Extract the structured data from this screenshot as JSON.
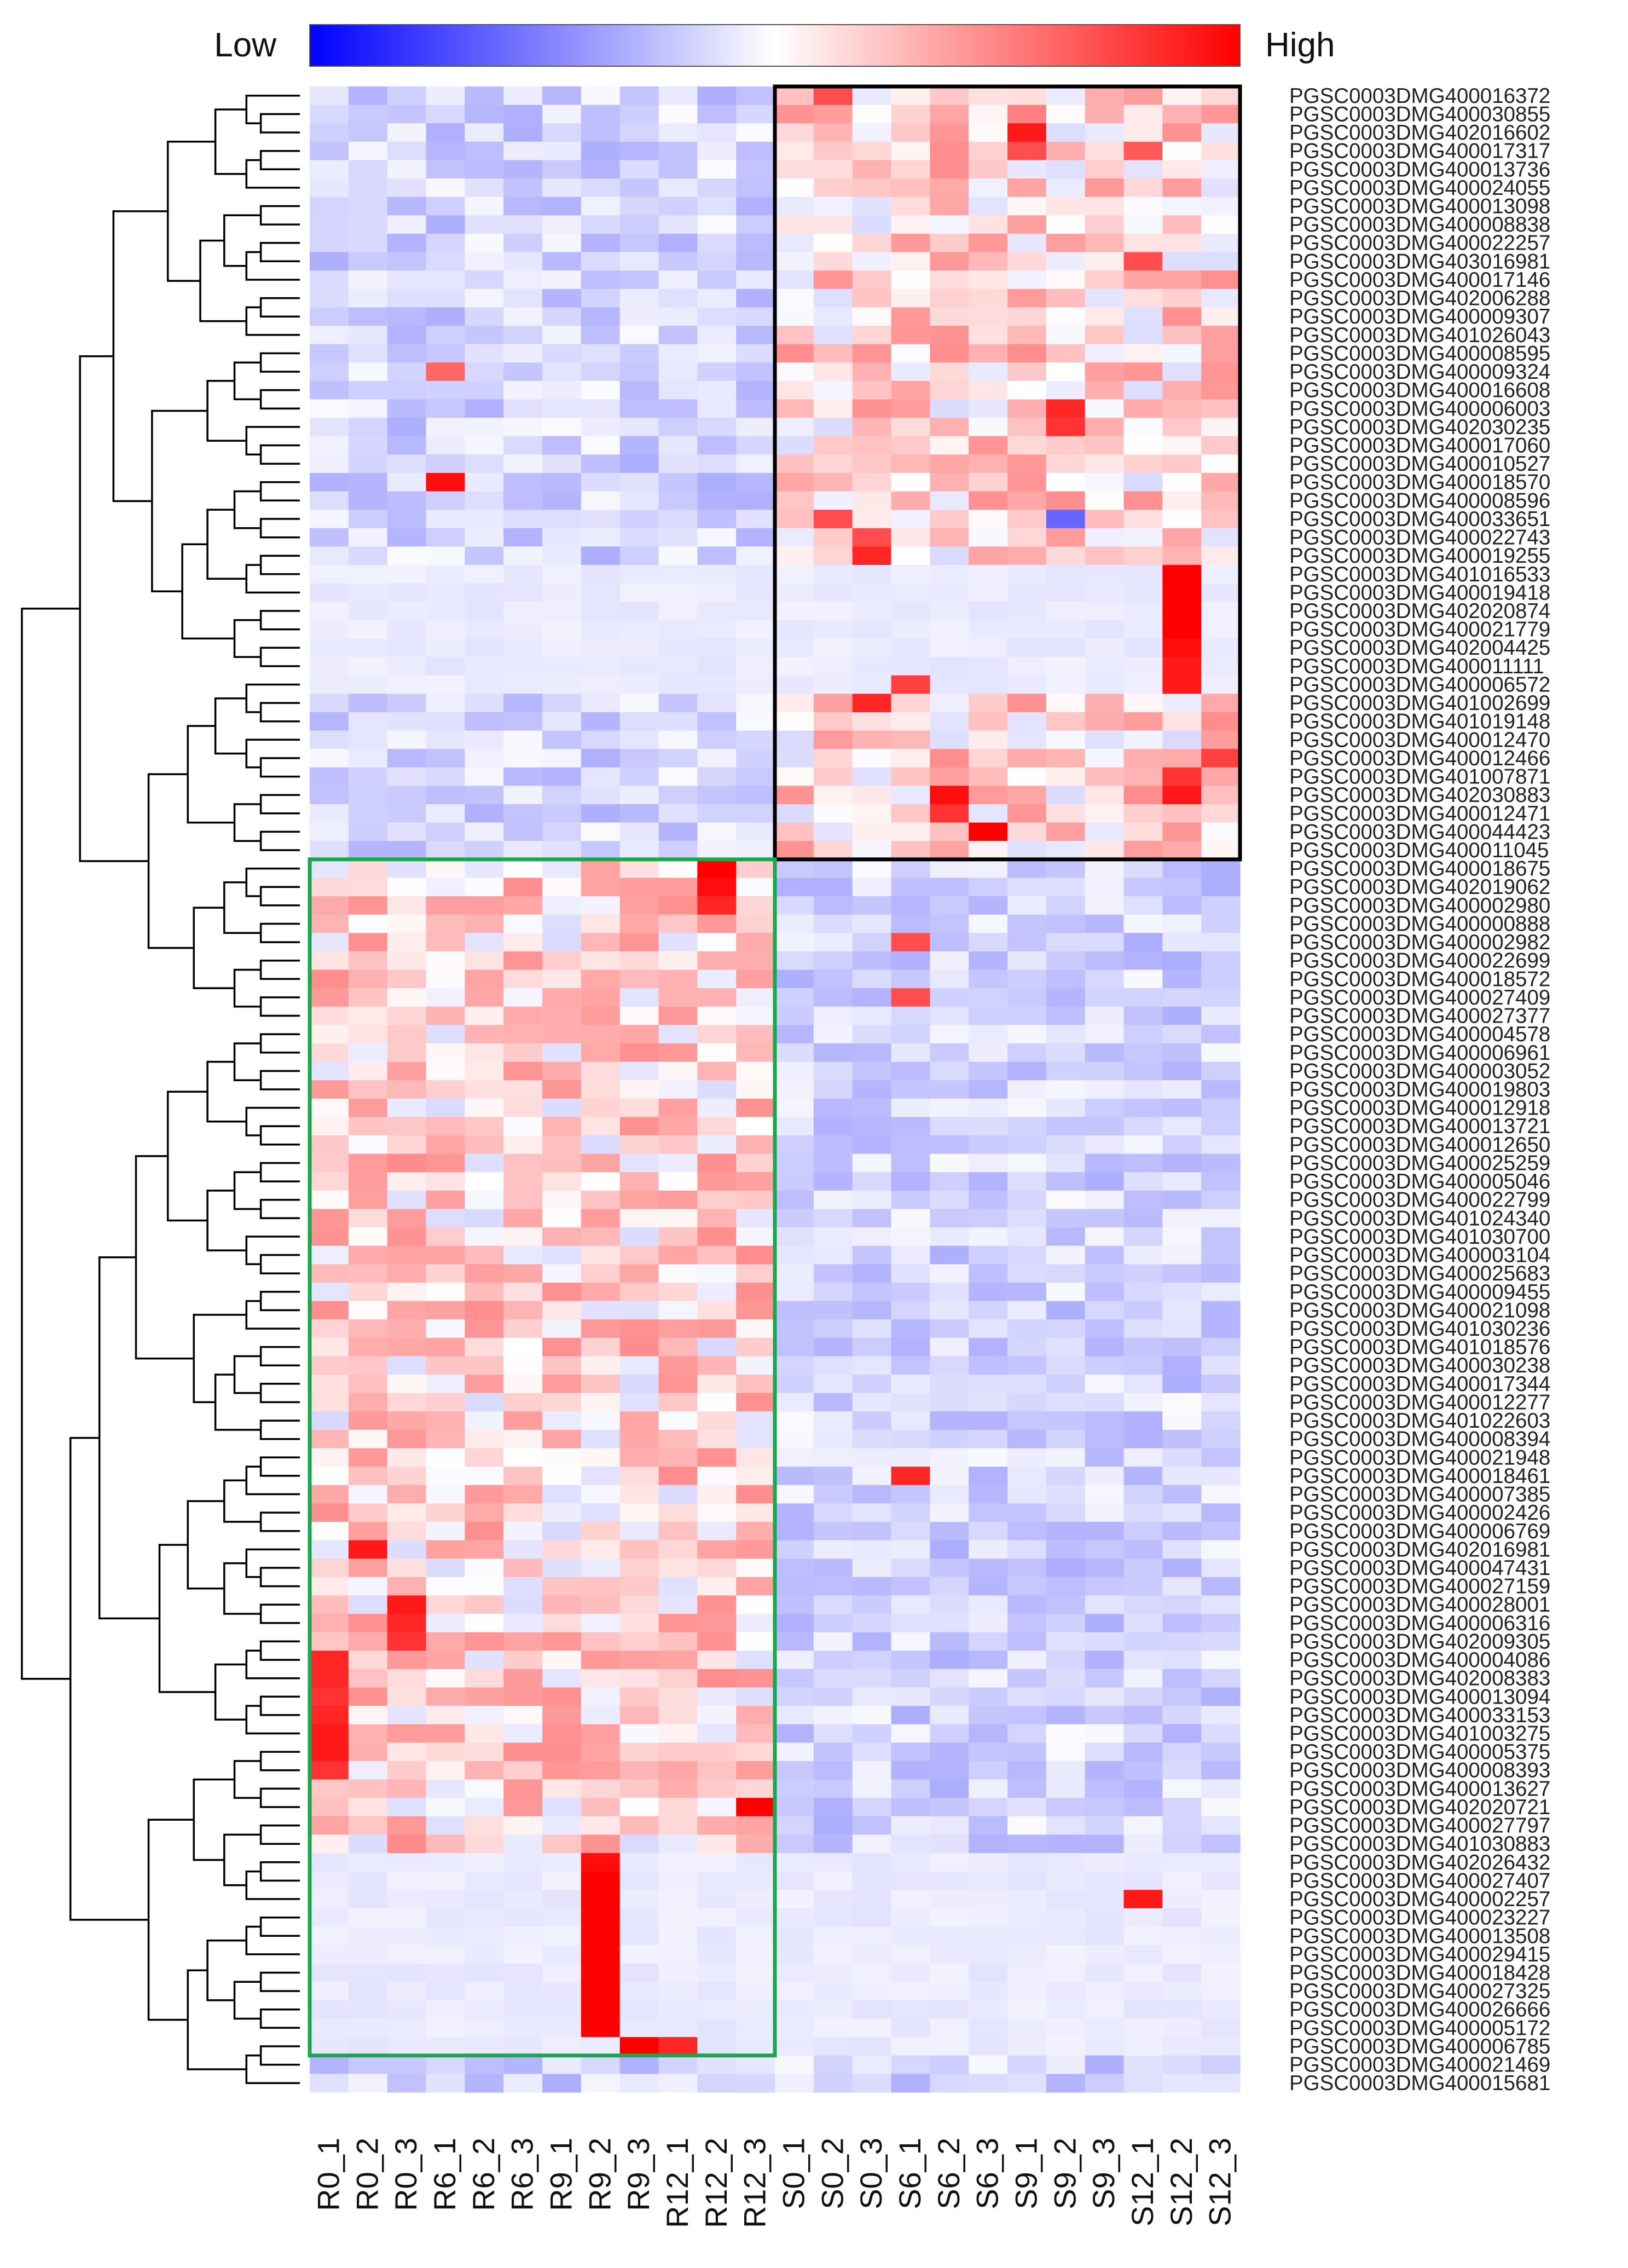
{
  "chart_data": {
    "type": "heatmap",
    "title": "",
    "color_scale": {
      "low_label": "Low",
      "high_label": "High",
      "low_color": "#0000ff",
      "mid_color": "#ffffff",
      "high_color": "#ff0000"
    },
    "columns": [
      "R0_1",
      "R0_2",
      "R0_3",
      "R6_1",
      "R6_2",
      "R6_3",
      "R9_1",
      "R9_2",
      "R9_3",
      "R12_1",
      "R12_2",
      "R12_3",
      "S0_1",
      "S0_2",
      "S0_3",
      "S6_1",
      "S6_2",
      "S6_3",
      "S9_1",
      "S9_2",
      "S9_3",
      "S12_1",
      "S12_2",
      "S12_3"
    ],
    "rows": [
      "PGSC0003DMG400016372",
      "PGSC0003DMG400030855",
      "PGSC0003DMG402016602",
      "PGSC0003DMG400017317",
      "PGSC0003DMG400013736",
      "PGSC0003DMG400024055",
      "PGSC0003DMG400013098",
      "PGSC0003DMG400008838",
      "PGSC0003DMG400022257",
      "PGSC0003DMG403016981",
      "PGSC0003DMG400017146",
      "PGSC0003DMG402006288",
      "PGSC0003DMG400009307",
      "PGSC0003DMG401026043",
      "PGSC0003DMG400008595",
      "PGSC0003DMG400009324",
      "PGSC0003DMG400016608",
      "PGSC0003DMG400006003",
      "PGSC0003DMG402030235",
      "PGSC0003DMG400017060",
      "PGSC0003DMG400010527",
      "PGSC0003DMG400018570",
      "PGSC0003DMG400008596",
      "PGSC0003DMG400033651",
      "PGSC0003DMG400022743",
      "PGSC0003DMG400019255",
      "PGSC0003DMG401016533",
      "PGSC0003DMG400019418",
      "PGSC0003DMG402020874",
      "PGSC0003DMG400021779",
      "PGSC0003DMG402004425",
      "PGSC0003DMG400011111",
      "PGSC0003DMG400006572",
      "PGSC0003DMG401002699",
      "PGSC0003DMG401019148",
      "PGSC0003DMG400012470",
      "PGSC0003DMG400012466",
      "PGSC0003DMG401007871",
      "PGSC0003DMG402030883",
      "PGSC0003DMG400012471",
      "PGSC0003DMG400044423",
      "PGSC0003DMG400011045",
      "PGSC0003DMG400018675",
      "PGSC0003DMG402019062",
      "PGSC0003DMG400002980",
      "PGSC0003DMG400000888",
      "PGSC0003DMG400002982",
      "PGSC0003DMG400022699",
      "PGSC0003DMG400018572",
      "PGSC0003DMG400027409",
      "PGSC0003DMG400027377",
      "PGSC0003DMG400004578",
      "PGSC0003DMG400006961",
      "PGSC0003DMG400003052",
      "PGSC0003DMG400019803",
      "PGSC0003DMG400012918",
      "PGSC0003DMG400013721",
      "PGSC0003DMG400012650",
      "PGSC0003DMG400025259",
      "PGSC0003DMG400005046",
      "PGSC0003DMG400022799",
      "PGSC0003DMG401024340",
      "PGSC0003DMG401030700",
      "PGSC0003DMG400003104",
      "PGSC0003DMG400025683",
      "PGSC0003DMG400009455",
      "PGSC0003DMG400021098",
      "PGSC0003DMG401030236",
      "PGSC0003DMG401018576",
      "PGSC0003DMG400030238",
      "PGSC0003DMG400017344",
      "PGSC0003DMG400012277",
      "PGSC0003DMG401022603",
      "PGSC0003DMG400008394",
      "PGSC0003DMG400021948",
      "PGSC0003DMG400018461",
      "PGSC0003DMG400007385",
      "PGSC0003DMG400002426",
      "PGSC0003DMG400006769",
      "PGSC0003DMG402016981",
      "PGSC0003DMG400047431",
      "PGSC0003DMG400027159",
      "PGSC0003DMG400028001",
      "PGSC0003DMG400006316",
      "PGSC0003DMG402009305",
      "PGSC0003DMG400004086",
      "PGSC0003DMG402008383",
      "PGSC0003DMG400013094",
      "PGSC0003DMG400033153",
      "PGSC0003DMG401003275",
      "PGSC0003DMG400005375",
      "PGSC0003DMG400008393",
      "PGSC0003DMG400013627",
      "PGSC0003DMG402020721",
      "PGSC0003DMG400027797",
      "PGSC0003DMG401030883",
      "PGSC0003DMG402026432",
      "PGSC0003DMG400027407",
      "PGSC0003DMG400002257",
      "PGSC0003DMG400023227",
      "PGSC0003DMG400013508",
      "PGSC0003DMG400029415",
      "PGSC0003DMG400018428",
      "PGSC0003DMG400027325",
      "PGSC0003DMG400026666",
      "PGSC0003DMG400005172",
      "PGSC0003DMG400006785",
      "PGSC0003DMG400021469",
      "PGSC0003DMG400015681"
    ],
    "row_groups": [
      {
        "box_color": "#000000",
        "row_range": [
          0,
          41
        ],
        "col_range": [
          12,
          23
        ]
      },
      {
        "box_color": "#1aa84a",
        "row_range": [
          42,
          106
        ],
        "col_range": [
          0,
          11
        ]
      }
    ],
    "hotspots": [
      {
        "row": 0,
        "col": 13,
        "value": 0.7
      },
      {
        "row": 1,
        "col": 18,
        "value": 0.5
      },
      {
        "row": 2,
        "col": 18,
        "value": 0.9
      },
      {
        "row": 3,
        "col": 18,
        "value": 0.7
      },
      {
        "row": 3,
        "col": 21,
        "value": 0.65
      },
      {
        "row": 9,
        "col": 21,
        "value": 0.7
      },
      {
        "row": 17,
        "col": 19,
        "value": 0.85
      },
      {
        "row": 18,
        "col": 19,
        "value": 0.8
      },
      {
        "row": 21,
        "col": 3,
        "value": 0.95
      },
      {
        "row": 15,
        "col": 3,
        "value": 0.6
      },
      {
        "row": 23,
        "col": 13,
        "value": 0.7
      },
      {
        "row": 24,
        "col": 14,
        "value": 0.7
      },
      {
        "row": 25,
        "col": 14,
        "value": 0.85
      },
      {
        "row": 23,
        "col": 19,
        "value": -0.6
      },
      {
        "row": 26,
        "col": 22,
        "value": 1.0
      },
      {
        "row": 27,
        "col": 22,
        "value": 1.0
      },
      {
        "row": 28,
        "col": 22,
        "value": 1.0
      },
      {
        "row": 29,
        "col": 22,
        "value": 1.0
      },
      {
        "row": 30,
        "col": 22,
        "value": 0.95
      },
      {
        "row": 31,
        "col": 22,
        "value": 0.9
      },
      {
        "row": 32,
        "col": 22,
        "value": 0.9
      },
      {
        "row": 33,
        "col": 14,
        "value": 0.85
      },
      {
        "row": 32,
        "col": 15,
        "value": 0.75
      },
      {
        "row": 37,
        "col": 22,
        "value": 0.8
      },
      {
        "row": 38,
        "col": 16,
        "value": 0.95
      },
      {
        "row": 38,
        "col": 22,
        "value": 0.9
      },
      {
        "row": 39,
        "col": 16,
        "value": 0.8
      },
      {
        "row": 40,
        "col": 17,
        "value": 1.0
      },
      {
        "row": 36,
        "col": 23,
        "value": 0.75
      },
      {
        "row": 42,
        "col": 10,
        "value": 1.0
      },
      {
        "row": 43,
        "col": 10,
        "value": 0.95
      },
      {
        "row": 44,
        "col": 10,
        "value": 0.85
      },
      {
        "row": 46,
        "col": 15,
        "value": 0.7
      },
      {
        "row": 49,
        "col": 15,
        "value": 0.7
      },
      {
        "row": 75,
        "col": 15,
        "value": 0.85
      },
      {
        "row": 93,
        "col": 11,
        "value": 1.0
      },
      {
        "row": 98,
        "col": 21,
        "value": 0.9
      },
      {
        "row": 79,
        "col": 1,
        "value": 0.9
      },
      {
        "row": 82,
        "col": 2,
        "value": 0.9
      },
      {
        "row": 83,
        "col": 2,
        "value": 0.85
      },
      {
        "row": 84,
        "col": 2,
        "value": 0.8
      },
      {
        "row": 85,
        "col": 0,
        "value": 0.85
      },
      {
        "row": 86,
        "col": 0,
        "value": 0.85
      },
      {
        "row": 87,
        "col": 0,
        "value": 0.8
      },
      {
        "row": 88,
        "col": 0,
        "value": 0.85
      },
      {
        "row": 89,
        "col": 0,
        "value": 0.9
      },
      {
        "row": 90,
        "col": 0,
        "value": 0.9
      },
      {
        "row": 91,
        "col": 0,
        "value": 0.8
      },
      {
        "row": 96,
        "col": 7,
        "value": 0.95
      },
      {
        "row": 97,
        "col": 7,
        "value": 1.0
      },
      {
        "row": 98,
        "col": 7,
        "value": 1.0
      },
      {
        "row": 99,
        "col": 7,
        "value": 1.0
      },
      {
        "row": 100,
        "col": 7,
        "value": 1.0
      },
      {
        "row": 101,
        "col": 7,
        "value": 1.0
      },
      {
        "row": 102,
        "col": 7,
        "value": 1.0
      },
      {
        "row": 103,
        "col": 7,
        "value": 1.0
      },
      {
        "row": 104,
        "col": 7,
        "value": 1.0
      },
      {
        "row": 105,
        "col": 7,
        "value": 1.0
      },
      {
        "row": 106,
        "col": 8,
        "value": 1.0
      },
      {
        "row": 106,
        "col": 9,
        "value": 0.85
      }
    ],
    "dendrogram": "hierarchical clustering of rows (left)",
    "grid": false,
    "legend_position": "top"
  }
}
